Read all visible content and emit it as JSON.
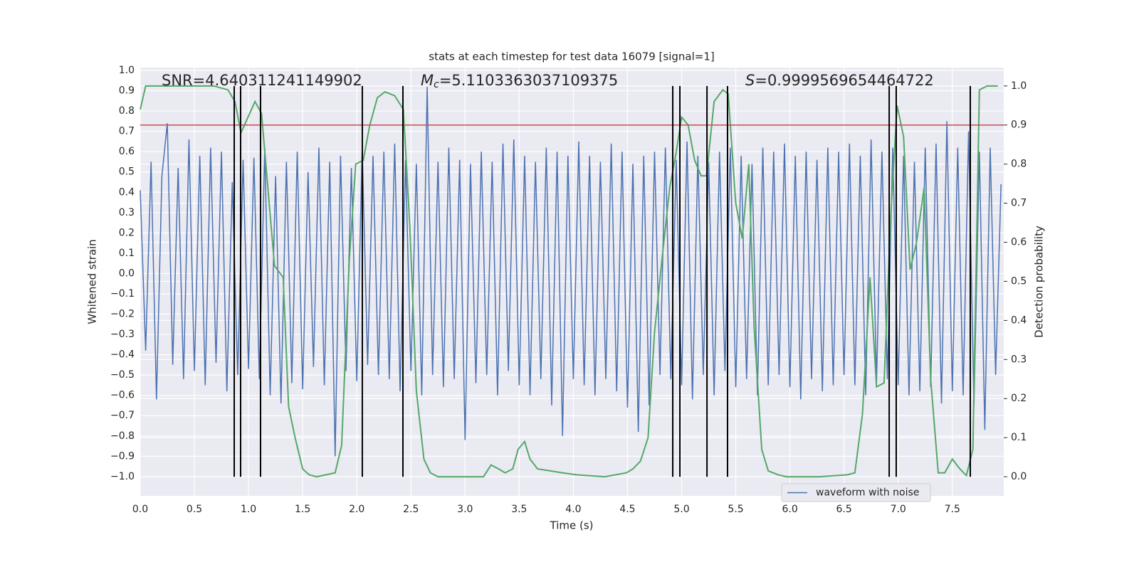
{
  "chart_data": {
    "type": "line",
    "title": "stats at each timestep for test data 16079 [signal=1]",
    "xlabel": "Time (s)",
    "ylabel": "Whitened strain",
    "y2label": "Detection probability",
    "annotations": [
      {
        "text": "SNR=4.640311241149902"
      },
      {
        "symbol": "M",
        "subscript": "c",
        "text": "=5.1103363037109375"
      },
      {
        "symbol": "S",
        "text": "=0.9999569654464722"
      }
    ],
    "xlim": [
      0,
      7.975
    ],
    "ylim": [
      -1.095,
      1.014
    ],
    "y2lim": [
      -0.049,
      1.047
    ],
    "grid": true,
    "legend": "lower right",
    "xticks": [
      {
        "value": 0,
        "label": "0.0"
      },
      {
        "value": 0.5,
        "label": "0.5"
      },
      {
        "value": 1,
        "label": "1.0"
      },
      {
        "value": 1.5,
        "label": "1.5"
      },
      {
        "value": 2,
        "label": "2.0"
      },
      {
        "value": 2.5,
        "label": "2.5"
      },
      {
        "value": 3,
        "label": "3.0"
      },
      {
        "value": 3.5,
        "label": "3.5"
      },
      {
        "value": 4,
        "label": "4.0"
      },
      {
        "value": 4.5,
        "label": "4.5"
      },
      {
        "value": 5,
        "label": "5.0"
      },
      {
        "value": 5.5,
        "label": "5.5"
      },
      {
        "value": 6,
        "label": "6.0"
      },
      {
        "value": 6.5,
        "label": "6.5"
      },
      {
        "value": 7,
        "label": "7.0"
      },
      {
        "value": 7.5,
        "label": "7.5"
      }
    ],
    "yticks": [
      {
        "value": -1,
        "label": "−1.0"
      },
      {
        "value": -0.9,
        "label": "−0.9"
      },
      {
        "value": -0.8,
        "label": "−0.8"
      },
      {
        "value": -0.7,
        "label": "−0.7"
      },
      {
        "value": -0.6,
        "label": "−0.6"
      },
      {
        "value": -0.5,
        "label": "−0.5"
      },
      {
        "value": -0.4,
        "label": "−0.4"
      },
      {
        "value": -0.3,
        "label": "−0.3"
      },
      {
        "value": -0.2,
        "label": "−0.2"
      },
      {
        "value": -0.1,
        "label": "−0.1"
      },
      {
        "value": 0,
        "label": "0.0"
      },
      {
        "value": 0.1,
        "label": "0.1"
      },
      {
        "value": 0.2,
        "label": "0.2"
      },
      {
        "value": 0.3,
        "label": "0.3"
      },
      {
        "value": 0.4,
        "label": "0.4"
      },
      {
        "value": 0.5,
        "label": "0.5"
      },
      {
        "value": 0.6,
        "label": "0.6"
      },
      {
        "value": 0.7,
        "label": "0.7"
      },
      {
        "value": 0.8,
        "label": "0.8"
      },
      {
        "value": 0.9,
        "label": "0.9"
      },
      {
        "value": 1,
        "label": "1.0"
      }
    ],
    "y2ticks": [
      {
        "value": 0,
        "label": "0.0"
      },
      {
        "value": 0.1,
        "label": "0.1"
      },
      {
        "value": 0.2,
        "label": "0.2"
      },
      {
        "value": 0.3,
        "label": "0.3"
      },
      {
        "value": 0.4,
        "label": "0.4"
      },
      {
        "value": 0.5,
        "label": "0.5"
      },
      {
        "value": 0.6,
        "label": "0.6"
      },
      {
        "value": 0.7,
        "label": "0.7"
      },
      {
        "value": 0.8,
        "label": "0.8"
      },
      {
        "value": 0.9,
        "label": "0.9"
      },
      {
        "value": 1,
        "label": "1.0"
      }
    ],
    "series": [
      {
        "name": "waveform with noise",
        "color": "#4c72b0",
        "x": [
          0,
          0.05,
          0.1,
          0.15,
          0.2,
          0.25,
          0.3,
          0.35,
          0.4,
          0.45,
          0.5,
          0.55,
          0.6,
          0.65,
          0.7,
          0.75,
          0.8,
          0.85,
          0.9,
          0.95,
          1,
          1.05,
          1.1,
          1.15,
          1.2,
          1.25,
          1.3,
          1.35,
          1.4,
          1.45,
          1.5,
          1.55,
          1.6,
          1.65,
          1.7,
          1.75,
          1.8,
          1.85,
          1.9,
          1.95,
          2,
          2.05,
          2.1,
          2.15,
          2.2,
          2.25,
          2.3,
          2.35,
          2.4,
          2.45,
          2.5,
          2.55,
          2.6,
          2.65,
          2.7,
          2.75,
          2.8,
          2.85,
          2.9,
          2.95,
          3,
          3.05,
          3.1,
          3.15,
          3.2,
          3.25,
          3.3,
          3.35,
          3.4,
          3.45,
          3.5,
          3.55,
          3.6,
          3.65,
          3.7,
          3.75,
          3.8,
          3.85,
          3.9,
          3.95,
          4,
          4.05,
          4.1,
          4.15,
          4.2,
          4.25,
          4.3,
          4.35,
          4.4,
          4.45,
          4.5,
          4.55,
          4.6,
          4.65,
          4.7,
          4.75,
          4.8,
          4.85,
          4.9,
          4.95,
          5,
          5.05,
          5.1,
          5.15,
          5.2,
          5.25,
          5.3,
          5.35,
          5.4,
          5.45,
          5.5,
          5.55,
          5.6,
          5.65,
          5.7,
          5.75,
          5.8,
          5.85,
          5.9,
          5.95,
          6,
          6.05,
          6.1,
          6.15,
          6.2,
          6.25,
          6.3,
          6.35,
          6.4,
          6.45,
          6.5,
          6.55,
          6.6,
          6.65,
          6.7,
          6.75,
          6.8,
          6.85,
          6.9,
          6.95,
          7,
          7.05,
          7.1,
          7.15,
          7.2,
          7.25,
          7.3,
          7.35,
          7.4,
          7.45,
          7.5,
          7.55,
          7.6,
          7.65,
          7.7,
          7.75,
          7.8,
          7.85,
          7.9,
          7.95
        ],
        "values": [
          0.41,
          -0.38,
          0.55,
          -0.62,
          0.48,
          0.74,
          -0.45,
          0.52,
          -0.52,
          0.66,
          -0.48,
          0.58,
          -0.55,
          0.62,
          -0.44,
          0.6,
          -0.58,
          0.45,
          -0.5,
          0.56,
          -0.47,
          0.57,
          -0.52,
          0.62,
          -0.6,
          0.48,
          -0.64,
          0.55,
          -0.54,
          0.6,
          -0.57,
          0.5,
          -0.46,
          0.62,
          -0.55,
          0.55,
          -0.9,
          0.58,
          -0.48,
          0.52,
          -0.53,
          0.62,
          -0.45,
          0.58,
          -0.5,
          0.6,
          -0.52,
          0.64,
          -0.58,
          0.56,
          -0.48,
          0.54,
          -0.6,
          0.92,
          -0.5,
          0.55,
          -0.56,
          0.62,
          -0.52,
          0.56,
          -0.82,
          0.54,
          -0.54,
          0.6,
          -0.5,
          0.55,
          -0.6,
          0.64,
          -0.48,
          0.66,
          -0.55,
          0.58,
          -0.6,
          0.55,
          -0.52,
          0.62,
          -0.65,
          0.6,
          -0.8,
          0.58,
          -0.52,
          0.65,
          -0.55,
          0.58,
          -0.6,
          0.55,
          -0.52,
          0.64,
          -0.58,
          0.6,
          -0.66,
          0.54,
          -0.78,
          0.58,
          -0.65,
          0.6,
          -0.5,
          0.62,
          -0.52,
          0.56,
          -0.55,
          0.65,
          -0.62,
          0.58,
          -0.5,
          0.55,
          -0.6,
          0.6,
          -0.48,
          0.62,
          -0.56,
          0.58,
          -0.52,
          0.54,
          -0.6,
          0.62,
          -0.55,
          0.6,
          -0.5,
          0.64,
          -0.56,
          0.58,
          -0.62,
          0.6,
          -0.52,
          0.56,
          -0.58,
          0.62,
          -0.55,
          0.6,
          -0.5,
          0.64,
          -0.55,
          0.58,
          -0.6,
          0.66,
          -0.54,
          0.6,
          -0.52,
          0.62,
          -0.55,
          0.58,
          -0.6,
          0.55,
          -0.58,
          0.62,
          -0.56,
          0.64,
          -0.64,
          0.75,
          -0.58,
          0.62,
          -0.6,
          0.7,
          -0.65,
          0.6,
          -0.77,
          0.62,
          -0.5,
          0.44
        ]
      }
    ],
    "probability": {
      "color": "#55a868",
      "axis": "y2",
      "x": [
        0,
        0.05,
        0.68,
        0.81,
        0.875,
        0.93,
        1.06,
        1.12,
        1.24,
        1.32,
        1.37,
        1.43,
        1.5,
        1.56,
        1.63,
        1.8,
        1.86,
        1.93,
        1.99,
        2.06,
        2.12,
        2.19,
        2.26,
        2.35,
        2.43,
        2.49,
        2.55,
        2.62,
        2.68,
        2.75,
        3.17,
        3.24,
        3.31,
        3.37,
        3.44,
        3.49,
        3.55,
        3.6,
        3.67,
        3.9,
        4.03,
        4.29,
        4.49,
        4.55,
        4.62,
        4.69,
        4.75,
        4.82,
        4.89,
        4.95,
        5,
        5.06,
        5.12,
        5.18,
        5.23,
        5.3,
        5.38,
        5.43,
        5.5,
        5.56,
        5.62,
        5.67,
        5.74,
        5.8,
        5.89,
        5.97,
        6.13,
        6.27,
        6.53,
        6.6,
        6.67,
        6.74,
        6.8,
        6.87,
        6.93,
        6.99,
        7.05,
        7.11,
        7.17,
        7.24,
        7.3,
        7.37,
        7.43,
        7.5,
        7.57,
        7.63,
        7.69,
        7.75,
        7.82,
        7.92
      ],
      "values": [
        0.94,
        1,
        1,
        0.99,
        0.96,
        0.88,
        0.96,
        0.93,
        0.54,
        0.51,
        0.18,
        0.1,
        0.02,
        0.005,
        0,
        0.01,
        0.08,
        0.55,
        0.8,
        0.81,
        0.9,
        0.97,
        0.985,
        0.975,
        0.94,
        0.64,
        0.22,
        0.045,
        0.01,
        0,
        0,
        0.03,
        0.02,
        0.01,
        0.02,
        0.07,
        0.09,
        0.045,
        0.02,
        0.01,
        0.005,
        0,
        0.01,
        0.02,
        0.04,
        0.1,
        0.37,
        0.56,
        0.74,
        0.83,
        0.92,
        0.9,
        0.81,
        0.77,
        0.77,
        0.96,
        0.99,
        0.98,
        0.7,
        0.61,
        0.8,
        0.38,
        0.07,
        0.015,
        0.005,
        0,
        0,
        0,
        0.005,
        0.01,
        0.16,
        0.51,
        0.23,
        0.24,
        0.66,
        0.95,
        0.87,
        0.53,
        0.6,
        0.74,
        0.25,
        0.01,
        0.01,
        0.045,
        0.02,
        0.003,
        0.07,
        0.99,
        1,
        1
      ]
    },
    "threshold": {
      "value": 0.9,
      "axis": "y2",
      "color": "#c44e52"
    },
    "vlines": {
      "color": "#000000",
      "x": [
        0.868,
        0.927,
        1.111,
        2.051,
        2.426,
        4.918,
        4.984,
        5.234,
        5.424,
        6.917,
        6.982,
        7.666
      ]
    }
  }
}
